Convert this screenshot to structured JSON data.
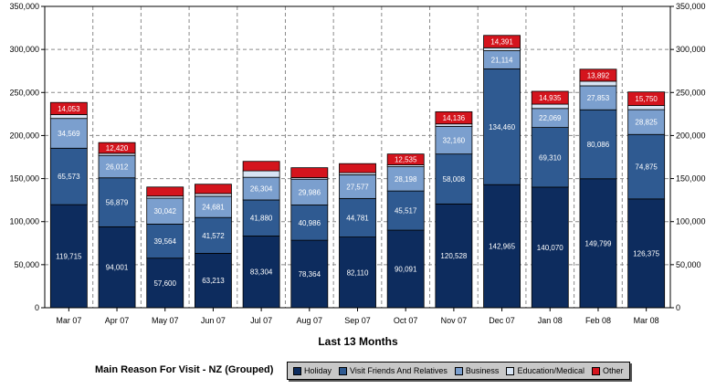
{
  "chart_data": {
    "type": "bar",
    "stacked": true,
    "xlabel": "Last 13 Months",
    "ylim": [
      0,
      350000
    ],
    "yticks": [
      0,
      50000,
      100000,
      150000,
      200000,
      250000,
      300000,
      350000
    ],
    "ytick_labels": [
      "0",
      "50,000",
      "100,000",
      "150,000",
      "200,000",
      "250,000",
      "300,000",
      "350,000"
    ],
    "grid": true,
    "categories": [
      "Mar 07",
      "Apr 07",
      "May 07",
      "Jun 07",
      "Jul 07",
      "Aug 07",
      "Sep 07",
      "Oct 07",
      "Nov 07",
      "Dec 07",
      "Jan 08",
      "Feb 08",
      "Mar 08"
    ],
    "series": [
      {
        "name": "Holiday",
        "color": "#0d2c5e",
        "values": [
          119715,
          94001,
          57600,
          63213,
          83304,
          78364,
          82110,
          90091,
          120528,
          142965,
          140070,
          149799,
          126375
        ],
        "labels": [
          "119,715",
          "94,001",
          "57,600",
          "63,213",
          "83,304",
          "78,364",
          "82,110",
          "90,091",
          "120,528",
          "142,965",
          "140,070",
          "149,799",
          "126,375"
        ]
      },
      {
        "name": "Visit Friends And Relatives",
        "color": "#2f5a91",
        "values": [
          65573,
          56879,
          39564,
          41572,
          41880,
          40986,
          44781,
          45517,
          58008,
          134460,
          69310,
          80086,
          74875
        ],
        "labels": [
          "65,573",
          "56,879",
          "39,564",
          "41,572",
          "41,880",
          "40,986",
          "44,781",
          "45,517",
          "58,008",
          "134,460",
          "69,310",
          "80,086",
          "74,875"
        ]
      },
      {
        "name": "Business",
        "color": "#7b9fce",
        "values": [
          34569,
          26012,
          30042,
          24681,
          26304,
          29986,
          27577,
          28198,
          32160,
          21114,
          22069,
          27853,
          28825
        ],
        "labels": [
          "34,569",
          "26,012",
          "30,042",
          "24,681",
          "26,304",
          "29,986",
          "27,577",
          "28,198",
          "32,160",
          "21,114",
          "22,069",
          "27,853",
          "28,825"
        ]
      },
      {
        "name": "Education/Medical",
        "color": "#d7e4f4",
        "values": [
          4500,
          2500,
          2500,
          3200,
          7500,
          1800,
          2400,
          2200,
          2800,
          3400,
          5000,
          5400,
          4800
        ],
        "labels": [
          "",
          "",
          "",
          "",
          "",
          "",
          "",
          "",
          "",
          "",
          "",
          "",
          ""
        ]
      },
      {
        "name": "Other",
        "color": "#d4141d",
        "values": [
          14053,
          12420,
          10500,
          10800,
          11000,
          11500,
          10500,
          12535,
          14136,
          14391,
          14935,
          13892,
          15750
        ],
        "labels": [
          "14,053",
          "12,420",
          "",
          "",
          "",
          "",
          "",
          "12,535",
          "14,136",
          "14,391",
          "14,935",
          "13,892",
          "15,750"
        ]
      }
    ],
    "legend_title": "Main Reason For Visit - NZ (Grouped)",
    "legend_position": "bottom"
  }
}
